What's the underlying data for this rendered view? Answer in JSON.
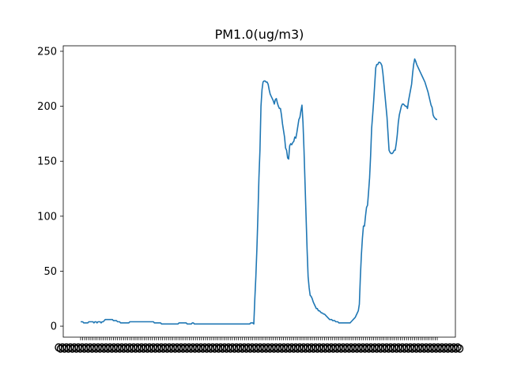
{
  "colors": {
    "series": "#1f77b4",
    "axes": "#000000",
    "background": "#ffffff"
  },
  "chart_data": {
    "type": "line",
    "title": "PM1.0(ug/m3)",
    "xlabel": "",
    "ylabel": "",
    "ylim": [
      -10,
      255
    ],
    "yticks": [
      0,
      50,
      100,
      150,
      200,
      250
    ],
    "ytick_labels": [
      "0",
      "50",
      "100",
      "150",
      "200",
      "250"
    ],
    "grid": false,
    "legend": "none",
    "x_tick_labels_note": "dense overlapping unreadable tick labels",
    "series": [
      {
        "values": [
          4,
          4,
          4,
          3,
          3,
          3,
          3,
          3,
          4,
          4,
          4,
          4,
          4,
          3,
          4,
          4,
          3,
          4,
          4,
          4,
          3,
          4,
          4,
          5,
          6,
          6,
          6,
          6,
          6,
          6,
          6,
          6,
          5,
          5,
          5,
          5,
          4,
          4,
          4,
          3,
          3,
          3,
          3,
          3,
          3,
          3,
          3,
          3,
          4,
          4,
          4,
          4,
          4,
          4,
          4,
          4,
          4,
          4,
          4,
          4,
          4,
          4,
          4,
          4,
          4,
          4,
          4,
          4,
          4,
          4,
          4,
          4,
          3,
          3,
          3,
          3,
          3,
          3,
          3,
          2,
          2,
          2,
          2,
          2,
          2,
          2,
          2,
          2,
          2,
          2,
          2,
          2,
          2,
          2,
          2,
          2,
          3,
          3,
          3,
          3,
          3,
          3,
          3,
          3,
          2,
          2,
          2,
          2,
          2,
          3,
          3,
          2,
          2,
          2,
          2,
          2,
          2,
          2,
          2,
          2,
          2,
          2,
          2,
          2,
          2,
          2,
          2,
          2,
          2,
          2,
          2,
          2,
          2,
          2,
          2,
          2,
          2,
          2,
          2,
          2,
          2,
          2,
          2,
          2,
          2,
          2,
          2,
          2,
          2,
          2,
          2,
          2,
          2,
          2,
          2,
          2,
          2,
          2,
          2,
          2,
          2,
          2,
          2,
          2,
          2,
          2,
          3,
          3,
          3,
          2,
          25,
          45,
          70,
          100,
          135,
          160,
          200,
          215,
          222,
          223,
          223,
          222,
          222,
          220,
          215,
          211,
          209,
          207,
          205,
          202,
          206,
          207,
          203,
          200,
          198,
          198,
          192,
          184,
          178,
          172,
          162,
          160,
          153,
          152,
          164,
          166,
          165,
          167,
          168,
          172,
          171,
          176,
          182,
          188,
          190,
          196,
          201,
          185,
          160,
          130,
          100,
          70,
          45,
          35,
          28,
          27,
          25,
          22,
          20,
          18,
          16,
          16,
          14,
          14,
          13,
          12,
          12,
          11,
          11,
          10,
          9,
          8,
          7,
          6,
          6,
          6,
          5,
          5,
          5,
          4,
          4,
          4,
          3,
          3,
          3,
          3,
          3,
          3,
          3,
          3,
          3,
          3,
          3,
          3,
          4,
          5,
          6,
          7,
          8,
          10,
          12,
          14,
          20,
          45,
          65,
          80,
          91,
          91,
          100,
          108,
          110,
          122,
          135,
          155,
          180,
          192,
          205,
          220,
          235,
          238,
          238,
          240,
          240,
          239,
          237,
          230,
          220,
          210,
          200,
          190,
          175,
          160,
          158,
          157,
          157,
          158,
          160,
          160,
          166,
          174,
          185,
          192,
          196,
          200,
          202,
          202,
          201,
          200,
          200,
          198,
          205,
          210,
          215,
          220,
          230,
          238,
          243,
          241,
          238,
          236,
          234,
          232,
          230,
          228,
          226,
          224,
          222,
          219,
          216,
          213,
          209,
          205,
          201,
          199,
          192,
          190,
          189,
          188,
          188
        ]
      }
    ]
  }
}
